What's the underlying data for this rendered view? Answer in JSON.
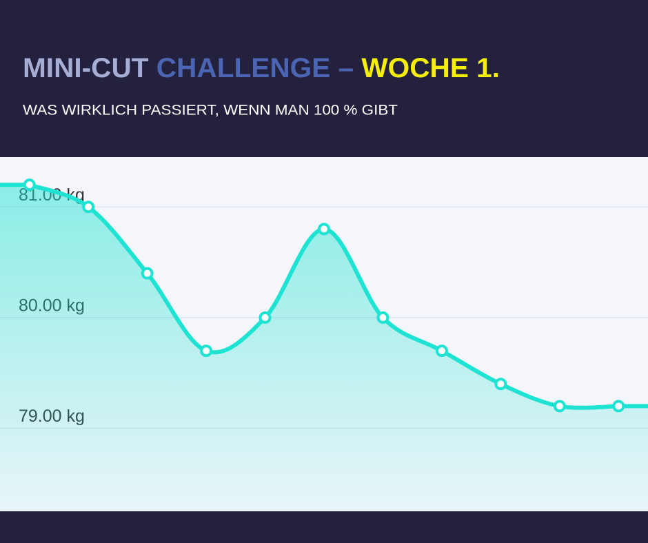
{
  "chart_data": {
    "type": "line",
    "title": [
      "MINI-CUT",
      "CHALLENGE –",
      "WOCHE 1."
    ],
    "subtitle": "WAS WIRKLICH PASSIERT, WENN MAN 100 % GIBT",
    "categories": [
      null,
      null,
      null,
      null,
      null,
      null,
      null,
      null,
      null,
      null,
      null
    ],
    "series": [
      {
        "color": "#1fe3d2",
        "values": [
          81.2,
          81.0,
          80.4,
          79.7,
          80.0,
          80.8,
          80.0,
          79.7,
          79.4,
          79.2,
          79.2
        ]
      }
    ],
    "ylim": [
      78.25,
      81.45
    ],
    "yticks": [
      {
        "value": 79,
        "label": "79.00 kg"
      },
      {
        "value": 80,
        "label": "80.00 kg"
      },
      {
        "value": 81,
        "label": "81.00 kg"
      }
    ],
    "grid": true
  }
}
